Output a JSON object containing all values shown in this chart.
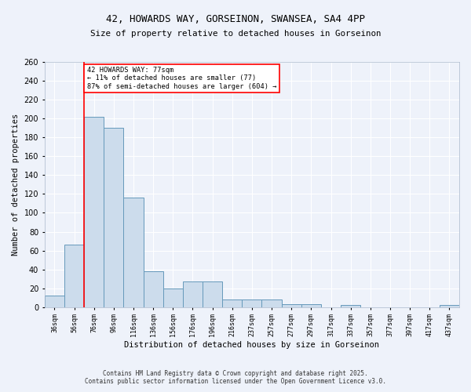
{
  "title_line1": "42, HOWARDS WAY, GORSEINON, SWANSEA, SA4 4PP",
  "title_line2": "Size of property relative to detached houses in Gorseinon",
  "xlabel": "Distribution of detached houses by size in Gorseinon",
  "ylabel": "Number of detached properties",
  "bar_color": "#ccdcec",
  "bar_edge_color": "#6699bb",
  "background_color": "#eef2fa",
  "grid_color": "#ffffff",
  "categories": [
    "36sqm",
    "56sqm",
    "76sqm",
    "96sqm",
    "116sqm",
    "136sqm",
    "156sqm",
    "176sqm",
    "196sqm",
    "216sqm",
    "237sqm",
    "257sqm",
    "277sqm",
    "297sqm",
    "317sqm",
    "337sqm",
    "357sqm",
    "377sqm",
    "397sqm",
    "417sqm",
    "437sqm"
  ],
  "values": [
    12,
    66,
    202,
    190,
    116,
    38,
    20,
    27,
    27,
    8,
    8,
    8,
    3,
    3,
    0,
    2,
    0,
    0,
    0,
    0,
    2
  ],
  "ylim": [
    0,
    260
  ],
  "yticks": [
    0,
    20,
    40,
    60,
    80,
    100,
    120,
    140,
    160,
    180,
    200,
    220,
    240,
    260
  ],
  "red_line_x": 2,
  "annotation_title": "42 HOWARDS WAY: 77sqm",
  "annotation_line2": "← 11% of detached houses are smaller (77)",
  "annotation_line3": "87% of semi-detached houses are larger (604) →",
  "footer_line1": "Contains HM Land Registry data © Crown copyright and database right 2025.",
  "footer_line2": "Contains public sector information licensed under the Open Government Licence v3.0.",
  "figsize": [
    6.0,
    5.0
  ],
  "dpi": 100
}
